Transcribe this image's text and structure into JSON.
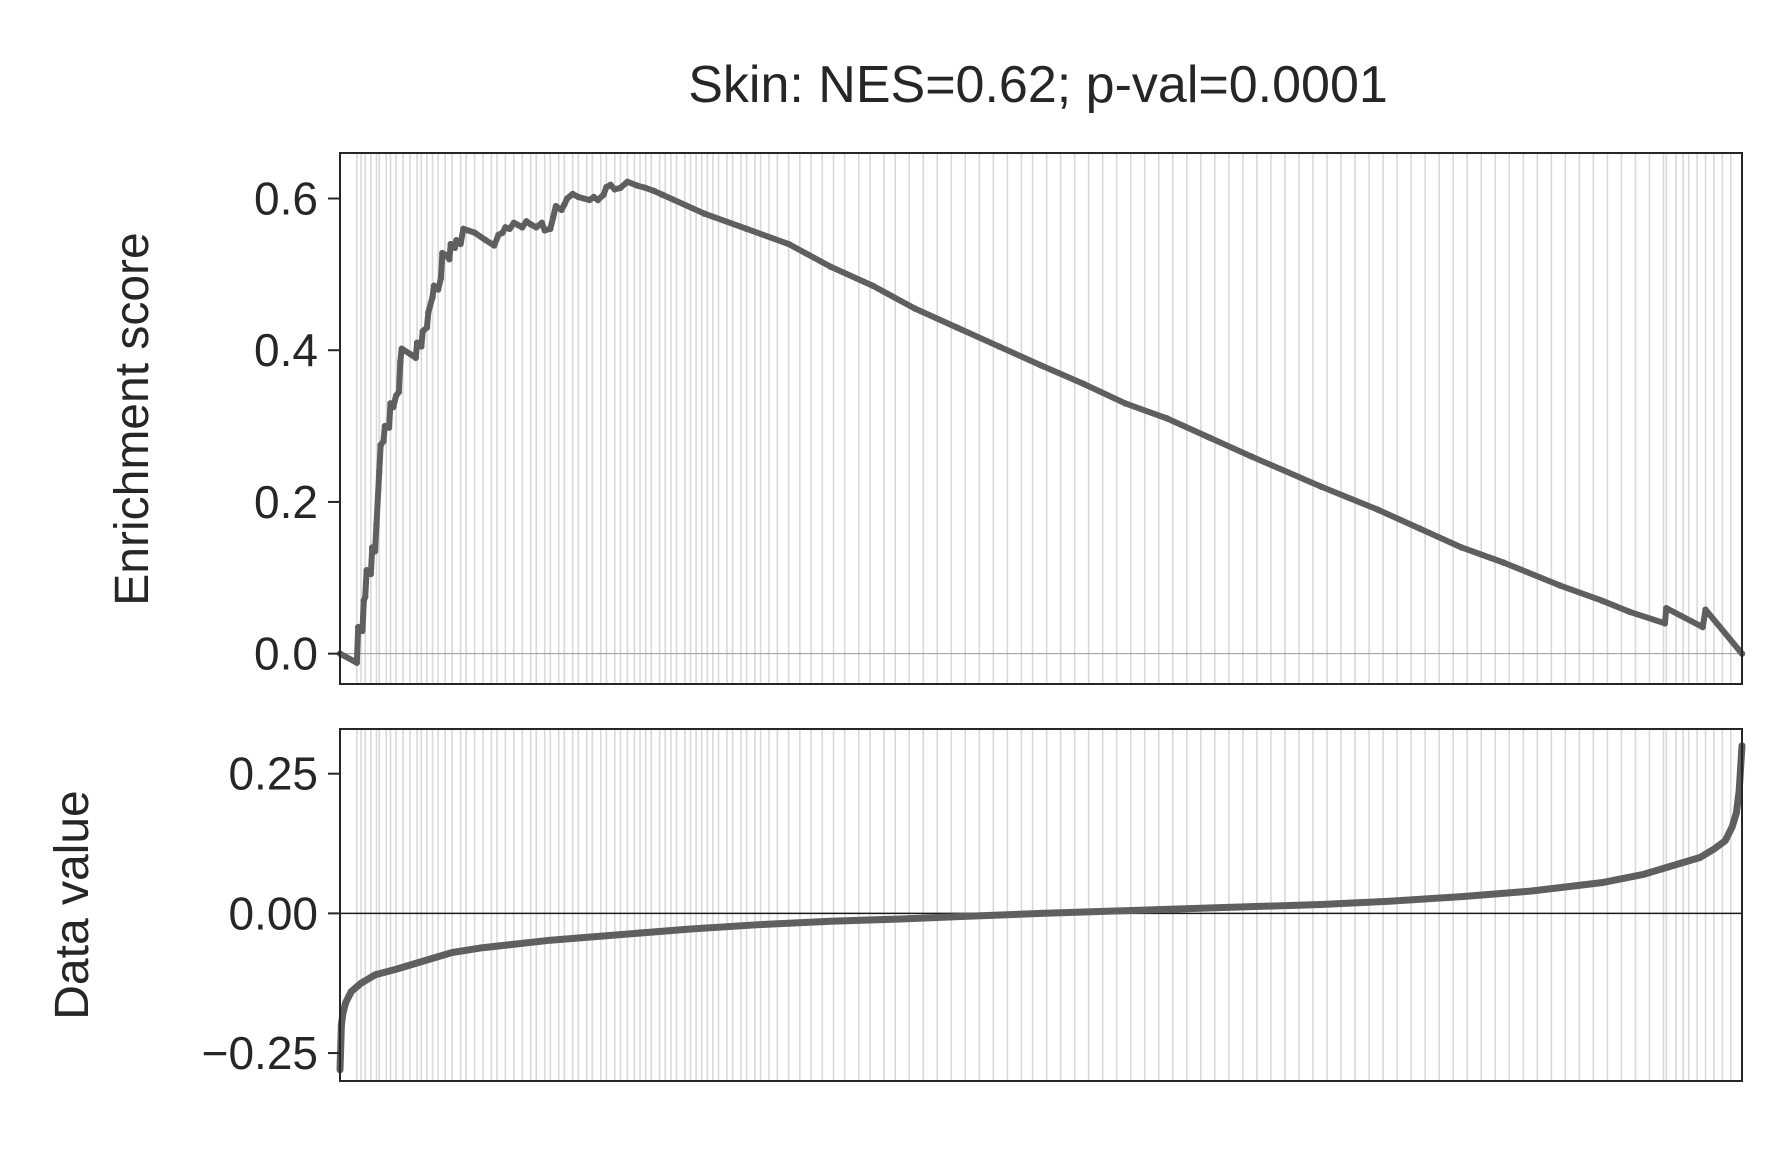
{
  "chart_data": {
    "type": "line",
    "title": "Skin: NES=0.62; p-val=0.0001",
    "n_ranks": 1000,
    "hit_positions": [
      12,
      15,
      18,
      22,
      26,
      28,
      33,
      36,
      40,
      45,
      50,
      55,
      58,
      62,
      66,
      70,
      75,
      80,
      86,
      90,
      96,
      102,
      108,
      112,
      118,
      124,
      130,
      136,
      140,
      146,
      150,
      156,
      160,
      166,
      170,
      176,
      180,
      186,
      190,
      196,
      200,
      205,
      210,
      214,
      218,
      222,
      228,
      232,
      236,
      240,
      246,
      250,
      254,
      258,
      262,
      266,
      270,
      276,
      280,
      286,
      290,
      296,
      300,
      306,
      312,
      320,
      328,
      336,
      344,
      352,
      360,
      370,
      378,
      388,
      396,
      406,
      416,
      426,
      436,
      446,
      456,
      466,
      476,
      486,
      494,
      504,
      514,
      524,
      534,
      544,
      554,
      564,
      574,
      584,
      594,
      604,
      614,
      624,
      634,
      644,
      654,
      664,
      674,
      684,
      694,
      704,
      714,
      724,
      734,
      744,
      754,
      764,
      774,
      784,
      794,
      804,
      814,
      824,
      834,
      844,
      854,
      864,
      874,
      884,
      894,
      904,
      914,
      924,
      934,
      944,
      946,
      953,
      958,
      962,
      968,
      974,
      980,
      986,
      992
    ],
    "panels": [
      {
        "ylabel": "Enrichment score",
        "ylim": [
          -0.04,
          0.66
        ],
        "yticks": [
          0.0,
          0.2,
          0.4,
          0.6
        ],
        "ytick_labels": [
          "0.0",
          "0.2",
          "0.4",
          "0.6"
        ],
        "zero_line": true,
        "series": [
          {
            "values": [
              [
                0,
                0.0
              ],
              [
                12,
                -0.012
              ],
              [
                13,
                0.035
              ],
              [
                16,
                0.03
              ],
              [
                17,
                0.07
              ],
              [
                18,
                0.075
              ],
              [
                19,
                0.11
              ],
              [
                22,
                0.105
              ],
              [
                23,
                0.14
              ],
              [
                25,
                0.135
              ],
              [
                26,
                0.17
              ],
              [
                28,
                0.24
              ],
              [
                29,
                0.275
              ],
              [
                31,
                0.28
              ],
              [
                32,
                0.3
              ],
              [
                35,
                0.298
              ],
              [
                36,
                0.33
              ],
              [
                38,
                0.325
              ],
              [
                40,
                0.34
              ],
              [
                42,
                0.345
              ],
              [
                43,
                0.385
              ],
              [
                44,
                0.402
              ],
              [
                50,
                0.395
              ],
              [
                54,
                0.39
              ],
              [
                55,
                0.41
              ],
              [
                58,
                0.405
              ],
              [
                59,
                0.425
              ],
              [
                62,
                0.43
              ],
              [
                63,
                0.45
              ],
              [
                66,
                0.47
              ],
              [
                67,
                0.485
              ],
              [
                70,
                0.48
              ],
              [
                72,
                0.495
              ],
              [
                73,
                0.528
              ],
              [
                76,
                0.525
              ],
              [
                78,
                0.52
              ],
              [
                79,
                0.54
              ],
              [
                82,
                0.535
              ],
              [
                83,
                0.545
              ],
              [
                86,
                0.54
              ],
              [
                88,
                0.56
              ],
              [
                96,
                0.555
              ],
              [
                104,
                0.545
              ],
              [
                110,
                0.538
              ],
              [
                113,
                0.552
              ],
              [
                116,
                0.555
              ],
              [
                118,
                0.562
              ],
              [
                121,
                0.56
              ],
              [
                124,
                0.568
              ],
              [
                127,
                0.565
              ],
              [
                130,
                0.562
              ],
              [
                133,
                0.57
              ],
              [
                136,
                0.566
              ],
              [
                140,
                0.562
              ],
              [
                144,
                0.568
              ],
              [
                146,
                0.558
              ],
              [
                150,
                0.56
              ],
              [
                152,
                0.575
              ],
              [
                154,
                0.59
              ],
              [
                158,
                0.585
              ],
              [
                160,
                0.592
              ],
              [
                162,
                0.6
              ],
              [
                166,
                0.606
              ],
              [
                170,
                0.602
              ],
              [
                174,
                0.6
              ],
              [
                178,
                0.598
              ],
              [
                181,
                0.602
              ],
              [
                184,
                0.598
              ],
              [
                188,
                0.605
              ],
              [
                190,
                0.615
              ],
              [
                193,
                0.618
              ],
              [
                196,
                0.612
              ],
              [
                200,
                0.614
              ],
              [
                205,
                0.622
              ],
              [
                212,
                0.617
              ],
              [
                218,
                0.614
              ],
              [
                224,
                0.61
              ],
              [
                230,
                0.605
              ],
              [
                260,
                0.58
              ],
              [
                290,
                0.56
              ],
              [
                320,
                0.54
              ],
              [
                350,
                0.51
              ],
              [
                380,
                0.485
              ],
              [
                410,
                0.455
              ],
              [
                440,
                0.43
              ],
              [
                470,
                0.405
              ],
              [
                500,
                0.38
              ],
              [
                530,
                0.356
              ],
              [
                560,
                0.33
              ],
              [
                590,
                0.31
              ],
              [
                620,
                0.285
              ],
              [
                650,
                0.26
              ],
              [
                700,
                0.22
              ],
              [
                740,
                0.19
              ],
              [
                770,
                0.165
              ],
              [
                800,
                0.14
              ],
              [
                830,
                0.12
              ],
              [
                870,
                0.09
              ],
              [
                900,
                0.07
              ],
              [
                920,
                0.055
              ],
              [
                945,
                0.04
              ],
              [
                946,
                0.06
              ],
              [
                972,
                0.035
              ],
              [
                974,
                0.058
              ],
              [
                1000,
                0.0
              ]
            ]
          }
        ]
      },
      {
        "ylabel": "Data value",
        "ylim": [
          -0.3,
          0.33
        ],
        "yticks": [
          -0.25,
          0.0,
          0.25
        ],
        "ytick_labels": [
          "−0.25",
          "0.00",
          "0.25"
        ],
        "zero_line": true,
        "series": [
          {
            "values": [
              [
                0,
                -0.28
              ],
              [
                1,
                -0.2
              ],
              [
                2,
                -0.18
              ],
              [
                4,
                -0.16
              ],
              [
                8,
                -0.14
              ],
              [
                15,
                -0.125
              ],
              [
                25,
                -0.11
              ],
              [
                40,
                -0.1
              ],
              [
                60,
                -0.085
              ],
              [
                80,
                -0.07
              ],
              [
                100,
                -0.062
              ],
              [
                150,
                -0.048
              ],
              [
                200,
                -0.038
              ],
              [
                250,
                -0.028
              ],
              [
                300,
                -0.02
              ],
              [
                350,
                -0.014
              ],
              [
                400,
                -0.01
              ],
              [
                450,
                -0.005
              ],
              [
                500,
                0.0
              ],
              [
                550,
                0.004
              ],
              [
                600,
                0.008
              ],
              [
                650,
                0.012
              ],
              [
                700,
                0.016
              ],
              [
                750,
                0.022
              ],
              [
                800,
                0.03
              ],
              [
                850,
                0.04
              ],
              [
                900,
                0.055
              ],
              [
                930,
                0.07
              ],
              [
                950,
                0.085
              ],
              [
                970,
                0.1
              ],
              [
                980,
                0.115
              ],
              [
                988,
                0.13
              ],
              [
                993,
                0.155
              ],
              [
                996,
                0.18
              ],
              [
                998,
                0.22
              ],
              [
                999,
                0.26
              ],
              [
                1000,
                0.3
              ]
            ]
          }
        ]
      }
    ],
    "colors": {
      "line": "#5f5f5f",
      "hit_line": "#d9d9d9",
      "axis": "#262626",
      "zero_line_top": "#9a9a9a",
      "zero_line_bottom": "#1a1a1a"
    }
  }
}
